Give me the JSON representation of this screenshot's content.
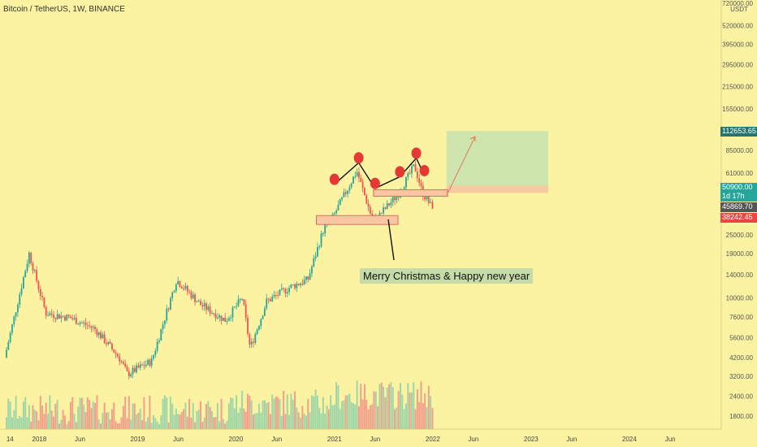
{
  "header": {
    "symbol": "Bitcoin / TetherUS, 1W, BINANCE"
  },
  "annotation": {
    "text": "Merry Christmas & Happy new year"
  },
  "price_tags": {
    "top_target": "112653.65",
    "last_price": "50900.00",
    "countdown": "1d 17h",
    "mid_level": "45869.70",
    "low_level": "38242.45"
  },
  "colors": {
    "background": "#fbf3a1",
    "up": "#26a69a",
    "down": "#ef5350",
    "target_zone": "#c6e3b0",
    "stop_zone": "#f6c7a0",
    "marker": "#e53935"
  },
  "chart_data": {
    "type": "candlestick",
    "y_axis_unit": "USDT",
    "y_scale": "log",
    "y_ticks": [
      "720000.00",
      "520000.00",
      "395000.00",
      "295000.00",
      "215000.00",
      "155000.00",
      "85000.00",
      "61000.00",
      "25000.00",
      "19000.00",
      "14000.00",
      "10000.00",
      "7600.00",
      "5600.00",
      "4200.00",
      "3200.00",
      "2400.00",
      "1800.00"
    ],
    "x_ticks": [
      "14",
      "2018",
      "Jun",
      "2019",
      "Jun",
      "2020",
      "Jun",
      "2021",
      "Jun",
      "2022",
      "Jun",
      "2023",
      "Jun",
      "2024",
      "Jun"
    ],
    "price_path": [
      {
        "date": "2017-09",
        "price": 4200
      },
      {
        "date": "2017-12",
        "price": 19000
      },
      {
        "date": "2018-02",
        "price": 8000
      },
      {
        "date": "2018-05",
        "price": 7500
      },
      {
        "date": "2018-08",
        "price": 6400
      },
      {
        "date": "2018-11",
        "price": 4200
      },
      {
        "date": "2018-12",
        "price": 3300
      },
      {
        "date": "2019-03",
        "price": 4000
      },
      {
        "date": "2019-06",
        "price": 13000
      },
      {
        "date": "2019-09",
        "price": 9000
      },
      {
        "date": "2019-12",
        "price": 7200
      },
      {
        "date": "2020-02",
        "price": 10000
      },
      {
        "date": "2020-03",
        "price": 4800
      },
      {
        "date": "2020-05",
        "price": 9500
      },
      {
        "date": "2020-08",
        "price": 11800
      },
      {
        "date": "2020-10",
        "price": 13000
      },
      {
        "date": "2020-12",
        "price": 28000
      },
      {
        "date": "2021-01",
        "price": 32000
      },
      {
        "date": "2021-04",
        "price": 63000
      },
      {
        "date": "2021-06",
        "price": 30000
      },
      {
        "date": "2021-09",
        "price": 45000
      },
      {
        "date": "2021-11",
        "price": 68000
      },
      {
        "date": "2021-12",
        "price": 46000
      },
      {
        "date": "2022-01",
        "price": 38000
      }
    ],
    "zones": {
      "target": {
        "from": "2022-01",
        "to": "2022-11",
        "low": 50900,
        "high": 112653.65
      },
      "stop": {
        "from": "2022-01",
        "to": "2022-11",
        "low": 45869.7,
        "high": 50900
      }
    },
    "support_boxes": [
      {
        "from": "2020-12",
        "to": "2021-08",
        "low": 29000,
        "high": 33000
      },
      {
        "from": "2021-07",
        "to": "2022-02",
        "low": 45000,
        "high": 48000
      }
    ],
    "pattern_points": [
      {
        "date": "2021-01",
        "price": 52000
      },
      {
        "date": "2021-04",
        "price": 71000
      },
      {
        "date": "2021-06",
        "price": 49000
      },
      {
        "date": "2021-09",
        "price": 58000
      },
      {
        "date": "2021-11",
        "price": 76000
      },
      {
        "date": "2021-12",
        "price": 59000
      }
    ]
  }
}
